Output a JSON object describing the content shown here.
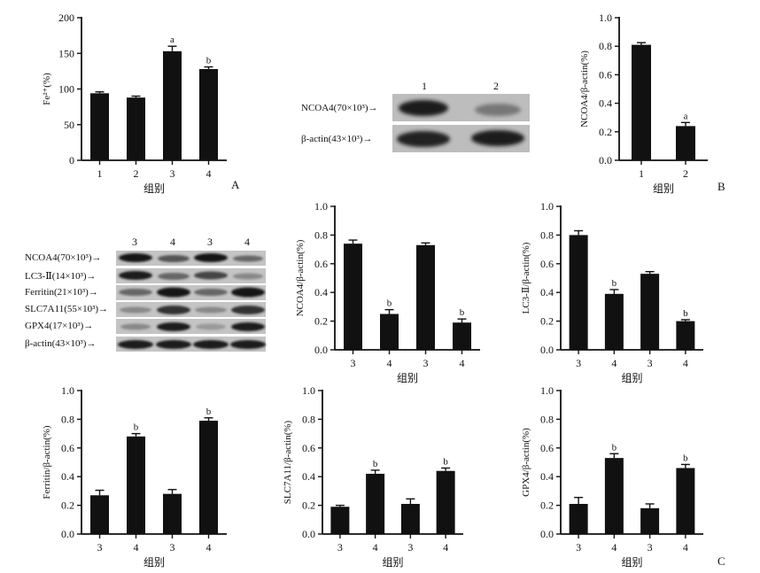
{
  "panel_letters": {
    "a": "A",
    "b": "B",
    "c": "C"
  },
  "blot_b": {
    "lanes": [
      "1",
      "2"
    ],
    "rows": [
      "NCOA4(70×10³)→",
      "β-actin(43×10³)→"
    ]
  },
  "blot_c": {
    "lanes": [
      "3",
      "4",
      "3",
      "4"
    ],
    "rows": [
      "NCOA4(70×10³)→",
      "LC3-Ⅱ(14×10³)→",
      "Ferritin(21×10³)→",
      "SLC7A11(55×10³)→",
      "GPX4(17×10³)→",
      "β-actin(43×10³)→"
    ]
  },
  "chart_data": [
    {
      "id": "A",
      "type": "bar",
      "categories": [
        "1",
        "2",
        "3",
        "4"
      ],
      "values": [
        94,
        88,
        153,
        128
      ],
      "errors": [
        2,
        2,
        7,
        3
      ],
      "annotations": [
        "",
        "",
        "a",
        "b"
      ],
      "xlabel": "组别",
      "ylabel": "Fe²⁺(%)",
      "ylim": [
        0,
        200
      ],
      "yticks": [
        0,
        50,
        100,
        150,
        200
      ]
    },
    {
      "id": "B",
      "type": "bar",
      "categories": [
        "1",
        "2"
      ],
      "values": [
        0.81,
        0.24
      ],
      "errors": [
        0.015,
        0.025
      ],
      "annotations": [
        "",
        "a"
      ],
      "xlabel": "组别",
      "ylabel": "NCOA4/β-actin(%)",
      "ylim": [
        0,
        1.0
      ],
      "yticks": [
        0,
        0.2,
        0.4,
        0.6,
        0.8,
        1.0
      ]
    },
    {
      "id": "C1",
      "type": "bar",
      "categories": [
        "3",
        "4",
        "3",
        "4"
      ],
      "values": [
        0.74,
        0.25,
        0.73,
        0.19
      ],
      "errors": [
        0.025,
        0.03,
        0.015,
        0.025
      ],
      "annotations": [
        "",
        "b",
        "",
        "b"
      ],
      "xlabel": "组别",
      "ylabel": "NCOA4/β-actin(%)",
      "ylim": [
        0,
        1.0
      ],
      "yticks": [
        0,
        0.2,
        0.4,
        0.6,
        0.8,
        1.0
      ]
    },
    {
      "id": "C2",
      "type": "bar",
      "categories": [
        "3",
        "4",
        "3",
        "4"
      ],
      "values": [
        0.8,
        0.39,
        0.53,
        0.2
      ],
      "errors": [
        0.03,
        0.03,
        0.015,
        0.01
      ],
      "annotations": [
        "",
        "b",
        "",
        "b"
      ],
      "xlabel": "组别",
      "ylabel": "LC3-Ⅱ/β-actin(%)",
      "ylim": [
        0,
        1.0
      ],
      "yticks": [
        0,
        0.2,
        0.4,
        0.6,
        0.8,
        1.0
      ]
    },
    {
      "id": "C3",
      "type": "bar",
      "categories": [
        "3",
        "4",
        "3",
        "4"
      ],
      "values": [
        0.27,
        0.68,
        0.28,
        0.79
      ],
      "errors": [
        0.035,
        0.02,
        0.03,
        0.02
      ],
      "annotations": [
        "",
        "b",
        "",
        "b"
      ],
      "xlabel": "组别",
      "ylabel": "Ferritin/β-actin(%)",
      "ylim": [
        0,
        1.0
      ],
      "yticks": [
        0,
        0.2,
        0.4,
        0.6,
        0.8,
        1.0
      ]
    },
    {
      "id": "C4",
      "type": "bar",
      "categories": [
        "3",
        "4",
        "3",
        "4"
      ],
      "values": [
        0.19,
        0.42,
        0.21,
        0.44
      ],
      "errors": [
        0.01,
        0.025,
        0.035,
        0.02
      ],
      "annotations": [
        "",
        "b",
        "",
        "b"
      ],
      "xlabel": "组别",
      "ylabel": "SLC7A11/β-actin(%)",
      "ylim": [
        0,
        1.0
      ],
      "yticks": [
        0,
        0.2,
        0.4,
        0.6,
        0.8,
        1.0
      ]
    },
    {
      "id": "C5",
      "type": "bar",
      "categories": [
        "3",
        "4",
        "3",
        "4"
      ],
      "values": [
        0.21,
        0.53,
        0.18,
        0.46
      ],
      "errors": [
        0.045,
        0.03,
        0.03,
        0.025
      ],
      "annotations": [
        "",
        "b",
        "",
        "b"
      ],
      "xlabel": "组别",
      "ylabel": "GPX4/β-actin(%)",
      "ylim": [
        0,
        1.0
      ],
      "yticks": [
        0,
        0.2,
        0.4,
        0.6,
        0.8,
        1.0
      ]
    }
  ]
}
